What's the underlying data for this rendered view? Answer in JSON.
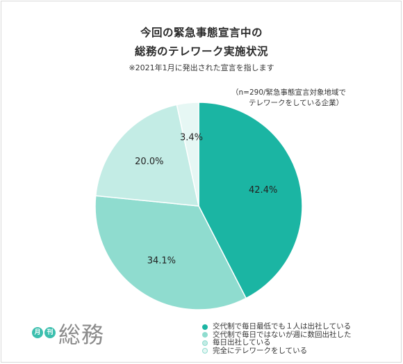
{
  "title_line1": "今回の緊急事態宣言中の",
  "title_line2": "総務のテレワーク実施状況",
  "subtitle": "※2021年1月に発出された宣言を指します",
  "note_line1": "（n=290/緊急事態宣言対象地域で",
  "note_line2": "テレワークをしている企業）",
  "logo": {
    "badge1": "月",
    "badge2": "刊",
    "word": "総務"
  },
  "chart_data": {
    "type": "pie",
    "categories": [
      "交代制で毎日最低でも１人は出社している",
      "交代制で毎日ではないが週に数回出社した",
      "毎日出社している",
      "完全にテレワークをしている"
    ],
    "values": [
      42.4,
      34.1,
      20.0,
      3.4
    ],
    "labels": [
      "42.4%",
      "34.1%",
      "20.0%",
      "3.4%"
    ],
    "colors": [
      "#1bb5a3",
      "#8fdccf",
      "#c3ece5",
      "#e6f7f4"
    ],
    "start": "12 o'clock",
    "direction": "clockwise",
    "legend_position": "bottom-right"
  }
}
